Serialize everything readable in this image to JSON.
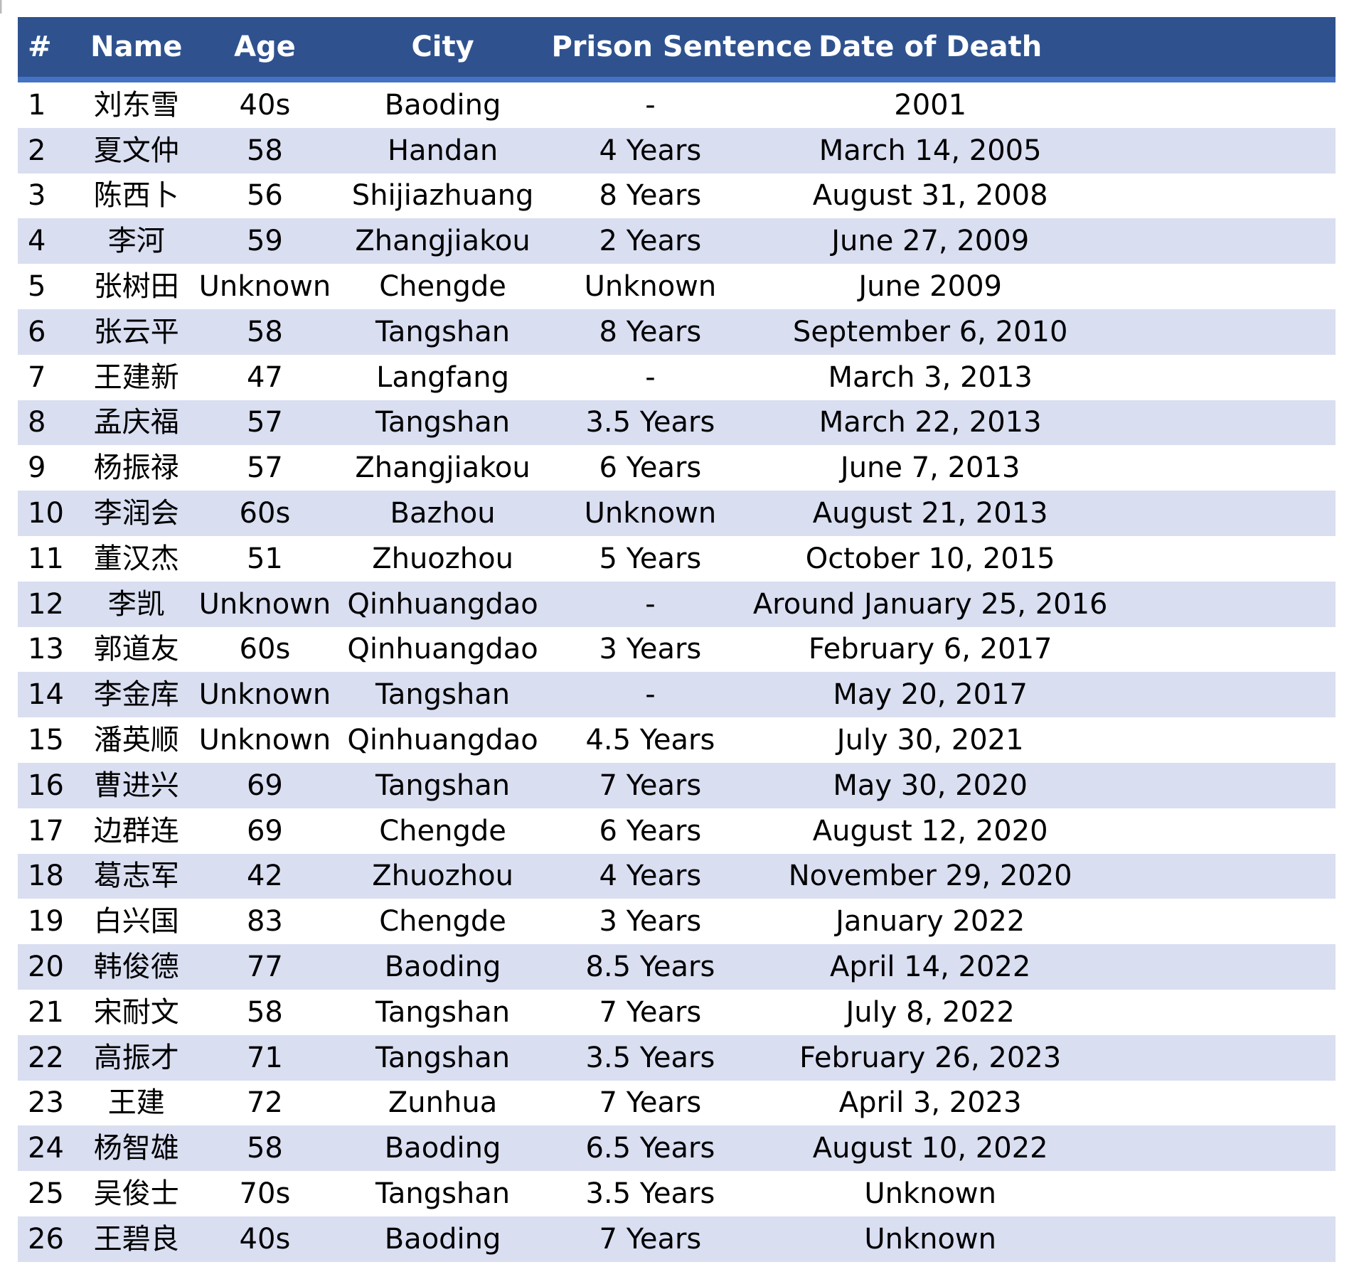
{
  "colors": {
    "header_bg": "#2F528F",
    "header_accent": "#4472C4",
    "row_alt_bg": "#D9DEF1",
    "header_text": "#FFFFFF",
    "body_text": "#000000"
  },
  "table": {
    "columns": [
      {
        "key": "num",
        "label": "#"
      },
      {
        "key": "name",
        "label": "Name"
      },
      {
        "key": "age",
        "label": "Age"
      },
      {
        "key": "city",
        "label": "City"
      },
      {
        "key": "sentence",
        "label": "Prison Sentence"
      },
      {
        "key": "death",
        "label": "Date of Death"
      }
    ],
    "rows": [
      [
        "1",
        "刘东雪",
        "40s",
        "Baoding",
        "-",
        "2001"
      ],
      [
        "2",
        "夏文仲",
        "58",
        "Handan",
        "4 Years",
        "March 14, 2005"
      ],
      [
        "3",
        "陈西卜",
        "56",
        "Shijiazhuang",
        "8 Years",
        "August 31, 2008"
      ],
      [
        "4",
        "李河",
        "59",
        "Zhangjiakou",
        "2 Years",
        "June 27, 2009"
      ],
      [
        "5",
        "张树田",
        "Unknown",
        "Chengde",
        "Unknown",
        "June 2009"
      ],
      [
        "6",
        "张云平",
        "58",
        "Tangshan",
        "8 Years",
        "September 6, 2010"
      ],
      [
        "7",
        "王建新",
        "47",
        "Langfang",
        "-",
        "March 3, 2013"
      ],
      [
        "8",
        "孟庆福",
        "57",
        "Tangshan",
        "3.5 Years",
        "March 22, 2013"
      ],
      [
        "9",
        "杨振禄",
        "57",
        "Zhangjiakou",
        "6 Years",
        "June 7, 2013"
      ],
      [
        "10",
        "李润会",
        "60s",
        "Bazhou",
        "Unknown",
        "August 21, 2013"
      ],
      [
        "11",
        "董汉杰",
        "51",
        "Zhuozhou",
        "5 Years",
        "October 10, 2015"
      ],
      [
        "12",
        "李凯",
        "Unknown",
        "Qinhuangdao",
        "-",
        "Around January 25, 2016"
      ],
      [
        "13",
        "郭道友",
        "60s",
        "Qinhuangdao",
        "3 Years",
        "February 6, 2017"
      ],
      [
        "14",
        "李金库",
        "Unknown",
        "Tangshan",
        "-",
        "May 20, 2017"
      ],
      [
        "15",
        "潘英顺",
        "Unknown",
        "Qinhuangdao",
        "4.5 Years",
        "July 30, 2021"
      ],
      [
        "16",
        "曹进兴",
        "69",
        "Tangshan",
        "7 Years",
        "May 30, 2020"
      ],
      [
        "17",
        "边群连",
        "69",
        "Chengde",
        "6 Years",
        "August 12, 2020"
      ],
      [
        "18",
        "葛志军",
        "42",
        "Zhuozhou",
        "4 Years",
        "November 29, 2020"
      ],
      [
        "19",
        "白兴国",
        "83",
        "Chengde",
        "3 Years",
        "January 2022"
      ],
      [
        "20",
        "韩俊德",
        "77",
        "Baoding",
        "8.5 Years",
        "April 14, 2022"
      ],
      [
        "21",
        "宋耐文",
        "58",
        "Tangshan",
        "7 Years",
        "July 8, 2022"
      ],
      [
        "22",
        "高振才",
        "71",
        "Tangshan",
        "3.5 Years",
        "February 26, 2023"
      ],
      [
        "23",
        "王建",
        "72",
        "Zunhua",
        "7 Years",
        "April 3, 2023"
      ],
      [
        "24",
        "杨智雄",
        "58",
        "Baoding",
        "6.5 Years",
        "August 10, 2022"
      ],
      [
        "25",
        "吴俊士",
        "70s",
        "Tangshan",
        "3.5 Years",
        "Unknown"
      ],
      [
        "26",
        "王碧良",
        "40s",
        "Baoding",
        "7 Years",
        "Unknown"
      ]
    ]
  }
}
